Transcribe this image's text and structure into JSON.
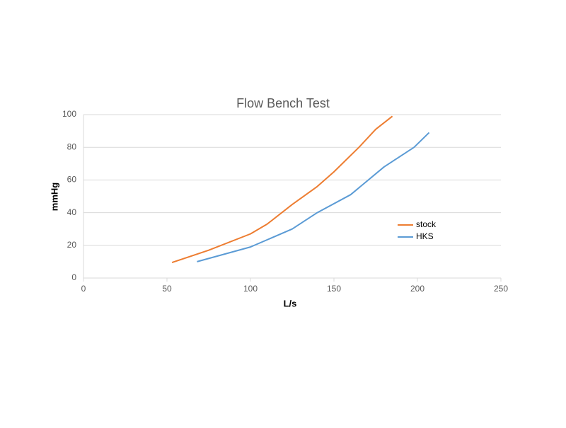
{
  "chart_data": {
    "type": "line",
    "title": "Flow Bench Test",
    "xlabel": "L/s",
    "ylabel": "mmHg",
    "series": [
      {
        "name": "stock",
        "color": "#ed7d31",
        "x": [
          53,
          75,
          100,
          110,
          125,
          140,
          150,
          165,
          175,
          185
        ],
        "values": [
          9.5,
          17,
          27,
          33,
          45,
          56,
          65,
          80,
          91,
          99
        ]
      },
      {
        "name": "HKS",
        "color": "#5b9bd5",
        "x": [
          68,
          100,
          125,
          140,
          160,
          180,
          198,
          207
        ],
        "values": [
          10,
          19,
          30,
          40,
          51,
          68,
          80,
          89
        ]
      }
    ],
    "xlim": [
      0,
      250
    ],
    "xticks": [
      0,
      50,
      100,
      150,
      200,
      250
    ],
    "ylim": [
      0,
      100
    ],
    "yticks": [
      0,
      20,
      40,
      60,
      80,
      100
    ],
    "grid": true,
    "legend": "right"
  }
}
